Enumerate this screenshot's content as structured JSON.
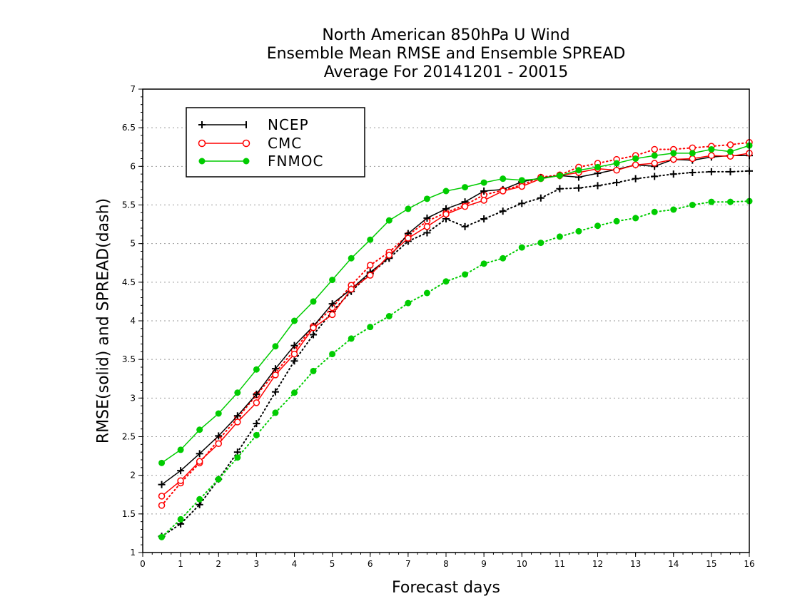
{
  "chart_data": {
    "type": "line",
    "title": [
      "North American 850hPa U Wind",
      "Ensemble Mean RMSE and Ensemble SPREAD",
      "Average For 20141201 - 20015"
    ],
    "xlabel": "Forecast days",
    "ylabel": "RMSE(solid) and SPREAD(dash)",
    "xlim": [
      0,
      16
    ],
    "ylim": [
      1,
      7
    ],
    "xticks": [
      0,
      1,
      2,
      3,
      4,
      5,
      6,
      7,
      8,
      9,
      10,
      11,
      12,
      13,
      14,
      15,
      16
    ],
    "yticks": [
      1,
      1.5,
      2,
      2.5,
      3,
      3.5,
      4,
      4.5,
      5,
      5.5,
      6,
      6.5,
      7
    ],
    "ytick_labels": [
      "1",
      "1.5",
      "2",
      "2.5",
      "3",
      "3.5",
      "4",
      "4.5",
      "5",
      "5.5",
      "6",
      "6.5",
      "7"
    ],
    "grid": "horizontal dotted",
    "legend": {
      "placement": "top-left",
      "entries": [
        "NCEP",
        "CMC",
        "FNMOC"
      ]
    },
    "x": [
      0.5,
      1,
      1.5,
      2,
      2.5,
      3,
      3.5,
      4,
      4.5,
      5,
      5.5,
      6,
      6.5,
      7,
      7.5,
      8,
      8.5,
      9,
      9.5,
      10,
      10.5,
      11,
      11.5,
      12,
      12.5,
      13,
      13.5,
      14,
      14.5,
      15,
      15.5,
      16
    ],
    "series": [
      {
        "name": "NCEP",
        "measure": "RMSE",
        "style": "solid",
        "marker": "plus",
        "color": "#000000",
        "values": [
          1.88,
          2.06,
          2.28,
          2.51,
          2.77,
          3.05,
          3.38,
          3.68,
          3.93,
          4.22,
          4.41,
          4.63,
          4.82,
          5.13,
          5.33,
          5.45,
          5.54,
          5.68,
          5.7,
          5.8,
          5.85,
          5.88,
          5.86,
          5.91,
          5.96,
          6.02,
          6.0,
          6.09,
          6.08,
          6.12,
          6.14,
          6.14
        ]
      },
      {
        "name": "NCEP",
        "measure": "SPREAD",
        "style": "dotted",
        "marker": "plus",
        "color": "#000000",
        "values": [
          1.21,
          1.37,
          1.62,
          1.95,
          2.3,
          2.67,
          3.08,
          3.48,
          3.82,
          4.12,
          4.38,
          4.61,
          4.81,
          5.03,
          5.14,
          5.32,
          5.22,
          5.32,
          5.42,
          5.52,
          5.59,
          5.71,
          5.72,
          5.75,
          5.79,
          5.84,
          5.87,
          5.9,
          5.92,
          5.93,
          5.93,
          5.94
        ]
      },
      {
        "name": "CMC",
        "measure": "RMSE",
        "style": "solid",
        "marker": "open-circle",
        "color": "#ff0000",
        "values": [
          1.73,
          1.93,
          2.18,
          2.41,
          2.69,
          2.94,
          3.3,
          3.57,
          3.91,
          4.08,
          4.41,
          4.59,
          4.85,
          5.07,
          5.22,
          5.38,
          5.48,
          5.56,
          5.68,
          5.74,
          5.84,
          5.88,
          5.92,
          5.97,
          5.95,
          6.02,
          6.04,
          6.09,
          6.1,
          6.14,
          6.13,
          6.17
        ]
      },
      {
        "name": "CMC",
        "measure": "SPREAD",
        "style": "dotted",
        "marker": "open-circle",
        "color": "#ff0000",
        "values": [
          1.61,
          1.9,
          2.16,
          2.46,
          2.74,
          3.04,
          3.33,
          3.62,
          3.93,
          4.17,
          4.46,
          4.72,
          4.89,
          5.11,
          5.29,
          5.4,
          5.5,
          5.63,
          5.69,
          5.76,
          5.86,
          5.89,
          5.99,
          6.04,
          6.09,
          6.14,
          6.22,
          6.22,
          6.24,
          6.26,
          6.28,
          6.31
        ]
      },
      {
        "name": "FNMOC",
        "measure": "RMSE",
        "style": "solid",
        "marker": "filled-circle",
        "color": "#00cc00",
        "values": [
          2.16,
          2.33,
          2.59,
          2.8,
          3.07,
          3.37,
          3.67,
          4.0,
          4.25,
          4.53,
          4.81,
          5.05,
          5.3,
          5.45,
          5.58,
          5.68,
          5.73,
          5.79,
          5.84,
          5.82,
          5.84,
          5.88,
          5.95,
          5.99,
          6.04,
          6.1,
          6.14,
          6.17,
          6.17,
          6.22,
          6.19,
          6.27
        ]
      },
      {
        "name": "FNMOC",
        "measure": "SPREAD",
        "style": "dotted",
        "marker": "filled-circle",
        "color": "#00cc00",
        "values": [
          1.2,
          1.43,
          1.69,
          1.95,
          2.23,
          2.52,
          2.81,
          3.07,
          3.35,
          3.57,
          3.77,
          3.92,
          4.06,
          4.23,
          4.36,
          4.51,
          4.6,
          4.74,
          4.81,
          4.95,
          5.01,
          5.09,
          5.16,
          5.23,
          5.29,
          5.33,
          5.41,
          5.44,
          5.5,
          5.54,
          5.54,
          5.55
        ]
      }
    ]
  }
}
